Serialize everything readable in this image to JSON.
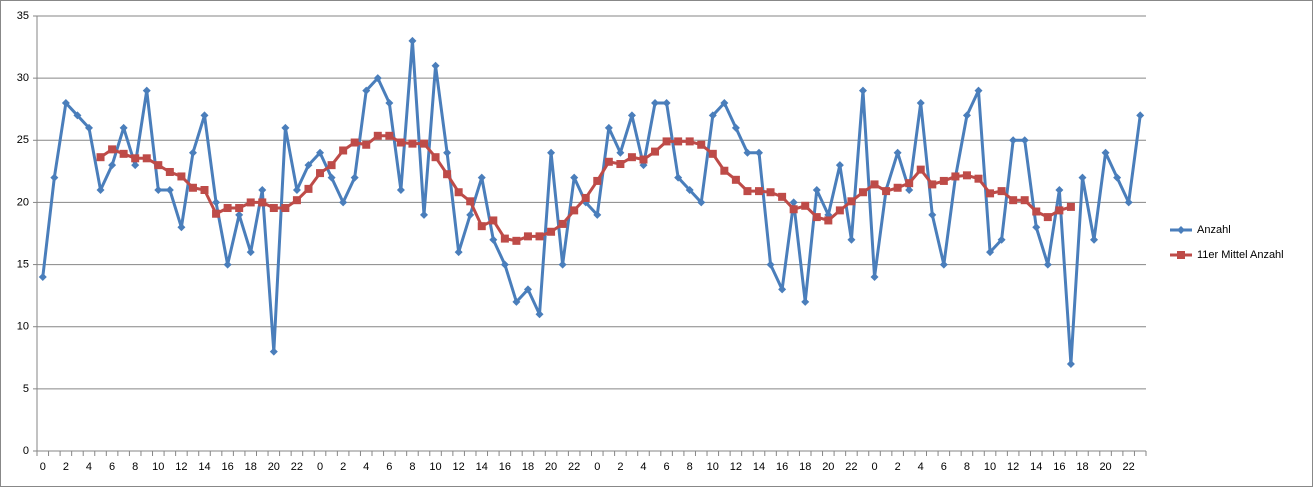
{
  "chart_data": {
    "type": "line",
    "categories": [
      "0",
      null,
      "2",
      null,
      "4",
      null,
      "6",
      null,
      "8",
      null,
      "10",
      null,
      "12",
      null,
      "14",
      null,
      "16",
      null,
      "18",
      null,
      "20",
      null,
      "22",
      null,
      "0",
      null,
      "2",
      null,
      "4",
      null,
      "6",
      null,
      "8",
      null,
      "10",
      null,
      "12",
      null,
      "14",
      null,
      "16",
      null,
      "18",
      null,
      "20",
      null,
      "22",
      null,
      "0",
      null,
      "2",
      null,
      "4",
      null,
      "6",
      null,
      "8",
      null,
      "10",
      null,
      "12",
      null,
      "14",
      null,
      "16",
      null,
      "18",
      null,
      "20",
      null,
      "22",
      null,
      "0",
      null,
      "2",
      null,
      "4",
      null,
      "6",
      null,
      "8",
      null,
      "10",
      null,
      "12",
      null,
      "14",
      null,
      "16",
      null,
      "18",
      null,
      "20",
      null,
      "22",
      null
    ],
    "series": [
      {
        "name": "Anzahl",
        "color": "#4a7ebb",
        "marker": "diamond",
        "values": [
          14,
          22,
          28,
          27,
          26,
          21,
          23,
          26,
          23,
          29,
          21,
          21,
          18,
          24,
          27,
          20,
          15,
          19,
          16,
          21,
          8,
          26,
          21,
          23,
          24,
          22,
          20,
          22,
          29,
          30,
          28,
          21,
          33,
          19,
          31,
          24,
          16,
          19,
          22,
          17,
          15,
          12,
          13,
          11,
          24,
          15,
          22,
          20,
          19,
          26,
          24,
          27,
          23,
          28,
          28,
          22,
          21,
          20,
          27,
          28,
          26,
          24,
          24,
          15,
          13,
          20,
          12,
          21,
          19,
          23,
          17,
          29,
          14,
          21,
          24,
          21,
          28,
          19,
          15,
          22,
          27,
          29,
          16,
          17,
          25,
          25,
          18,
          15,
          21,
          7,
          22,
          17,
          24,
          22,
          20,
          27
        ]
      },
      {
        "name": "11er Mittel Anzahl",
        "color": "#be4b48",
        "marker": "square",
        "values": [
          null,
          null,
          null,
          null,
          null,
          23.64,
          24.27,
          23.91,
          23.55,
          23.55,
          23.0,
          22.45,
          22.09,
          21.18,
          21.0,
          19.09,
          19.55,
          19.55,
          20.0,
          20.0,
          19.55,
          19.55,
          20.18,
          21.09,
          22.36,
          23.0,
          24.18,
          24.82,
          24.64,
          25.36,
          25.36,
          24.82,
          24.73,
          24.73,
          23.64,
          22.27,
          20.82,
          20.09,
          18.09,
          18.55,
          17.09,
          16.91,
          17.27,
          17.27,
          17.64,
          18.27,
          19.36,
          20.36,
          21.73,
          23.27,
          23.09,
          23.64,
          23.45,
          24.09,
          24.91,
          24.91,
          24.91,
          24.64,
          23.91,
          22.55,
          21.82,
          20.91,
          20.91,
          20.82,
          20.45,
          19.45,
          19.73,
          18.82,
          18.55,
          19.36,
          20.09,
          20.82,
          21.45,
          20.91,
          21.18,
          21.55,
          22.64,
          21.45,
          21.73,
          22.09,
          22.18,
          21.91,
          20.73,
          20.91,
          20.18,
          20.18,
          19.27,
          18.82,
          19.36,
          19.64,
          null,
          null,
          null,
          null,
          null,
          null
        ]
      }
    ],
    "ylim": [
      0,
      35
    ],
    "yticks": [
      0,
      5,
      10,
      15,
      20,
      25,
      30,
      35
    ],
    "grid": true,
    "legend": "right"
  }
}
